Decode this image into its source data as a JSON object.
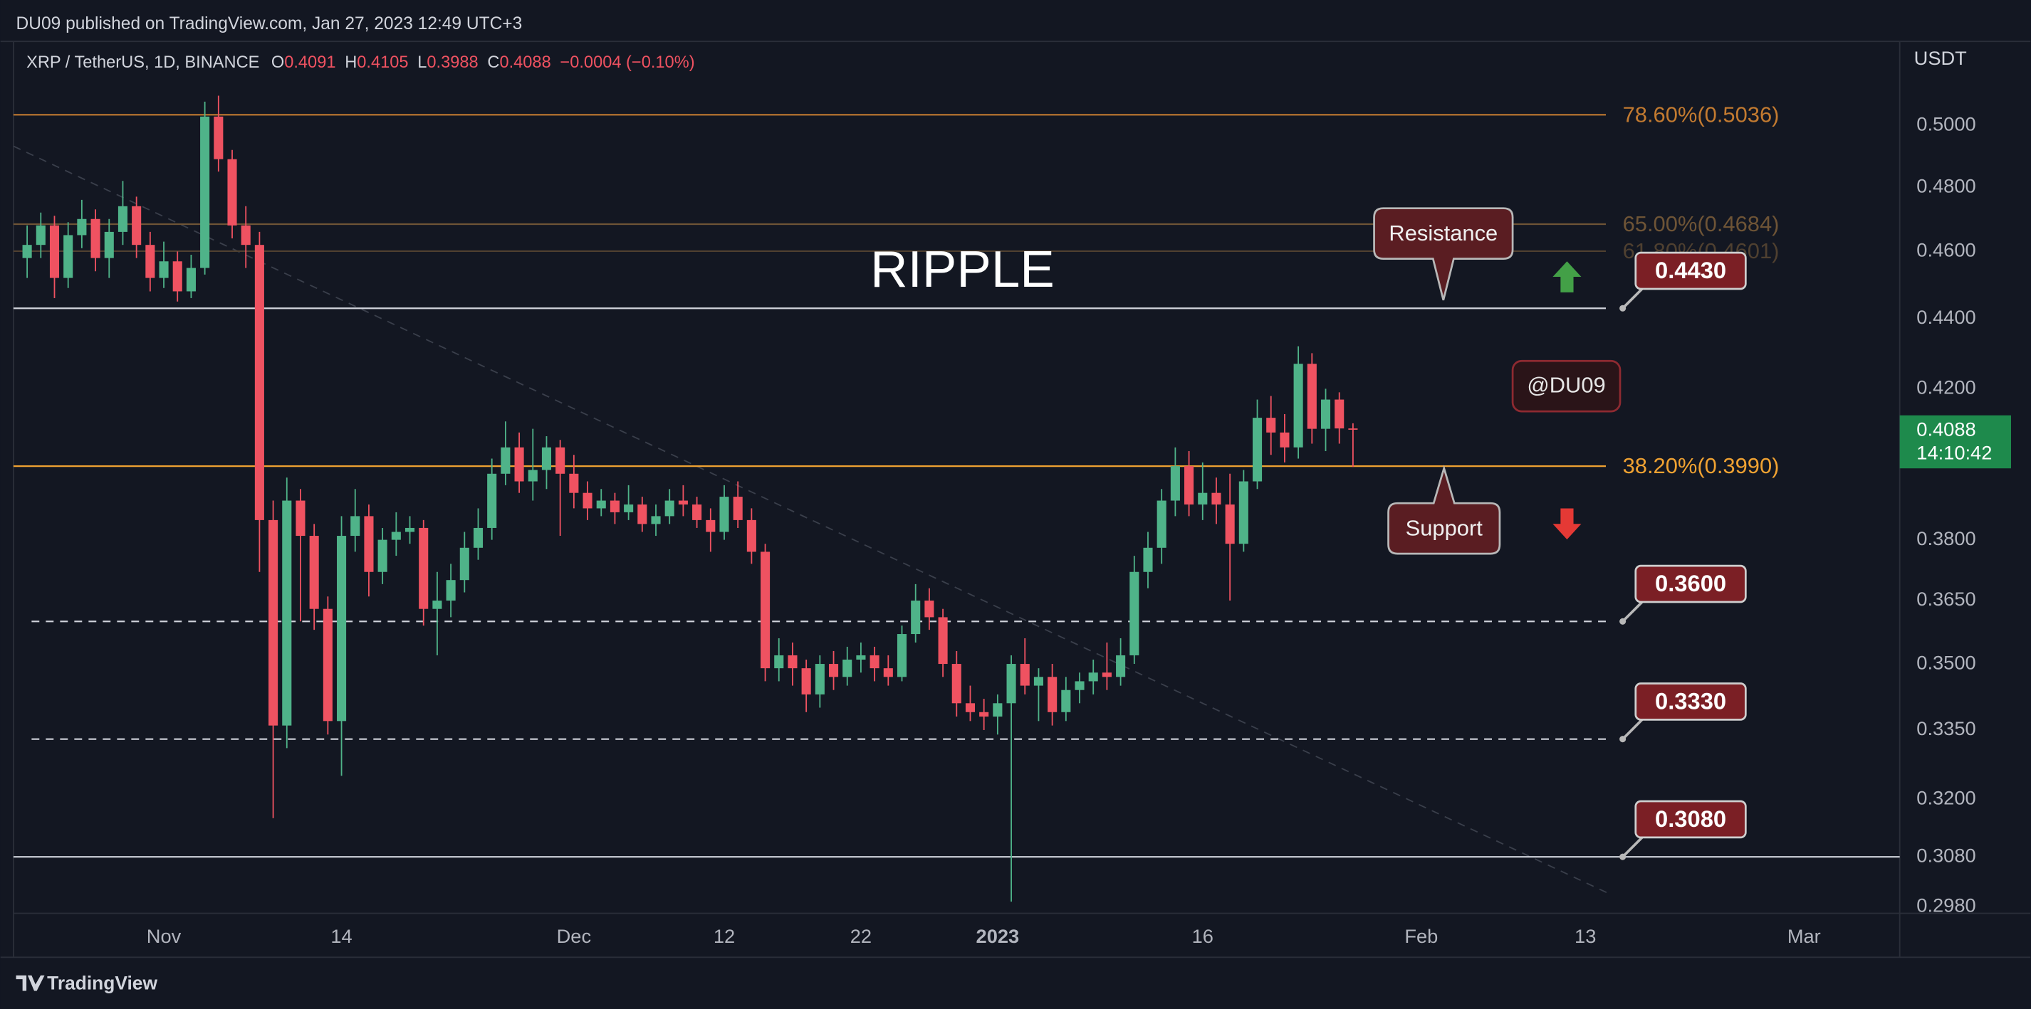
{
  "header": {
    "publisher": "DU09 published on TradingView.com, Jan 27, 2023 12:49 UTC+3",
    "brand": "TradingView"
  },
  "chart_data": {
    "type": "candlestick",
    "symbol": "XRP / TetherUS, 1D, BINANCE",
    "ohlc_labels": [
      "O",
      "H",
      "L",
      "C"
    ],
    "change": "−0.0004 (−0.10%)",
    "title": "RIPPLE",
    "watermark": "@DU09",
    "y_axis_label": "USDT",
    "countdown": "14:10:42",
    "up_color": "#4fb389",
    "down_color": "#ef5261",
    "x": [
      "2022-10-22",
      "2022-10-23",
      "2022-10-24",
      "2022-10-25",
      "2022-10-26",
      "2022-10-27",
      "2022-10-28",
      "2022-10-29",
      "2022-10-30",
      "2022-10-31",
      "2022-11-01",
      "2022-11-02",
      "2022-11-03",
      "2022-11-04",
      "2022-11-05",
      "2022-11-06",
      "2022-11-07",
      "2022-11-08",
      "2022-11-09",
      "2022-11-10",
      "2022-11-11",
      "2022-11-12",
      "2022-11-13",
      "2022-11-14",
      "2022-11-15",
      "2022-11-16",
      "2022-11-17",
      "2022-11-18",
      "2022-11-19",
      "2022-11-20",
      "2022-11-21",
      "2022-11-22",
      "2022-11-23",
      "2022-11-24",
      "2022-11-25",
      "2022-11-26",
      "2022-11-27",
      "2022-11-28",
      "2022-11-29",
      "2022-11-30",
      "2022-12-01",
      "2022-12-02",
      "2022-12-03",
      "2022-12-04",
      "2022-12-05",
      "2022-12-06",
      "2022-12-07",
      "2022-12-08",
      "2022-12-09",
      "2022-12-10",
      "2022-12-11",
      "2022-12-12",
      "2022-12-13",
      "2022-12-14",
      "2022-12-15",
      "2022-12-16",
      "2022-12-17",
      "2022-12-18",
      "2022-12-19",
      "2022-12-20",
      "2022-12-21",
      "2022-12-22",
      "2022-12-23",
      "2022-12-24",
      "2022-12-25",
      "2022-12-26",
      "2022-12-27",
      "2022-12-28",
      "2022-12-29",
      "2022-12-30",
      "2022-12-31",
      "2023-01-01",
      "2023-01-02",
      "2023-01-03",
      "2023-01-04",
      "2023-01-05",
      "2023-01-06",
      "2023-01-07",
      "2023-01-08",
      "2023-01-09",
      "2023-01-10",
      "2023-01-11",
      "2023-01-12",
      "2023-01-13",
      "2023-01-14",
      "2023-01-15",
      "2023-01-16",
      "2023-01-17",
      "2023-01-18",
      "2023-01-19",
      "2023-01-20",
      "2023-01-21",
      "2023-01-22",
      "2023-01-23",
      "2023-01-24",
      "2023-01-25",
      "2023-01-26",
      "2023-01-27"
    ],
    "open": [
      0.458,
      0.462,
      0.468,
      0.452,
      0.465,
      0.47,
      0.458,
      0.466,
      0.474,
      0.462,
      0.452,
      0.457,
      0.448,
      0.455,
      0.503,
      0.489,
      0.468,
      0.462,
      0.385,
      0.336,
      0.39,
      0.381,
      0.363,
      0.337,
      0.381,
      0.386,
      0.372,
      0.38,
      0.382,
      0.383,
      0.363,
      0.365,
      0.37,
      0.378,
      0.383,
      0.397,
      0.404,
      0.395,
      0.398,
      0.404,
      0.397,
      0.392,
      0.388,
      0.39,
      0.387,
      0.389,
      0.384,
      0.386,
      0.39,
      0.389,
      0.385,
      0.382,
      0.391,
      0.385,
      0.377,
      0.349,
      0.352,
      0.349,
      0.343,
      0.35,
      0.347,
      0.351,
      0.352,
      0.349,
      0.347,
      0.357,
      0.365,
      0.361,
      0.35,
      0.341,
      0.339,
      0.338,
      0.341,
      0.35,
      0.345,
      0.347,
      0.339,
      0.344,
      0.346,
      0.348,
      0.347,
      0.352,
      0.372,
      0.378,
      0.39,
      0.399,
      0.389,
      0.392,
      0.389,
      0.379,
      0.395,
      0.412,
      0.408,
      0.404,
      0.427,
      0.409,
      0.417,
      0.4091
    ],
    "high": [
      0.468,
      0.472,
      0.471,
      0.469,
      0.476,
      0.473,
      0.47,
      0.482,
      0.477,
      0.466,
      0.463,
      0.46,
      0.459,
      0.508,
      0.51,
      0.492,
      0.474,
      0.466,
      0.39,
      0.396,
      0.393,
      0.384,
      0.366,
      0.386,
      0.393,
      0.389,
      0.383,
      0.387,
      0.386,
      0.385,
      0.372,
      0.374,
      0.382,
      0.388,
      0.401,
      0.411,
      0.408,
      0.409,
      0.407,
      0.406,
      0.402,
      0.395,
      0.393,
      0.392,
      0.394,
      0.391,
      0.389,
      0.393,
      0.394,
      0.391,
      0.388,
      0.394,
      0.395,
      0.388,
      0.379,
      0.356,
      0.355,
      0.351,
      0.352,
      0.353,
      0.354,
      0.355,
      0.354,
      0.352,
      0.359,
      0.369,
      0.368,
      0.363,
      0.353,
      0.345,
      0.342,
      0.343,
      0.352,
      0.356,
      0.349,
      0.35,
      0.347,
      0.348,
      0.351,
      0.355,
      0.356,
      0.376,
      0.382,
      0.393,
      0.404,
      0.403,
      0.4,
      0.396,
      0.397,
      0.398,
      0.417,
      0.418,
      0.413,
      0.432,
      0.43,
      0.42,
      0.419,
      0.4105
    ],
    "low": [
      0.452,
      0.458,
      0.446,
      0.449,
      0.461,
      0.454,
      0.452,
      0.462,
      0.458,
      0.448,
      0.449,
      0.445,
      0.446,
      0.453,
      0.485,
      0.464,
      0.455,
      0.372,
      0.316,
      0.331,
      0.36,
      0.358,
      0.334,
      0.325,
      0.377,
      0.366,
      0.369,
      0.376,
      0.379,
      0.359,
      0.352,
      0.361,
      0.367,
      0.375,
      0.38,
      0.394,
      0.392,
      0.39,
      0.393,
      0.381,
      0.388,
      0.385,
      0.386,
      0.384,
      0.385,
      0.382,
      0.381,
      0.384,
      0.386,
      0.383,
      0.377,
      0.38,
      0.383,
      0.374,
      0.346,
      0.346,
      0.345,
      0.339,
      0.34,
      0.344,
      0.345,
      0.348,
      0.346,
      0.345,
      0.346,
      0.355,
      0.358,
      0.347,
      0.338,
      0.337,
      0.335,
      0.334,
      0.299,
      0.343,
      0.337,
      0.336,
      0.337,
      0.341,
      0.343,
      0.344,
      0.345,
      0.35,
      0.368,
      0.374,
      0.386,
      0.386,
      0.385,
      0.384,
      0.365,
      0.377,
      0.393,
      0.402,
      0.4,
      0.401,
      0.405,
      0.403,
      0.405,
      0.3988
    ],
    "close": [
      0.462,
      0.468,
      0.452,
      0.465,
      0.47,
      0.458,
      0.466,
      0.474,
      0.462,
      0.452,
      0.457,
      0.448,
      0.455,
      0.503,
      0.489,
      0.468,
      0.462,
      0.385,
      0.336,
      0.39,
      0.381,
      0.363,
      0.337,
      0.381,
      0.386,
      0.372,
      0.38,
      0.382,
      0.383,
      0.363,
      0.365,
      0.37,
      0.378,
      0.383,
      0.397,
      0.404,
      0.395,
      0.398,
      0.404,
      0.397,
      0.392,
      0.388,
      0.39,
      0.387,
      0.389,
      0.384,
      0.386,
      0.39,
      0.389,
      0.385,
      0.382,
      0.391,
      0.385,
      0.377,
      0.349,
      0.352,
      0.349,
      0.343,
      0.35,
      0.347,
      0.351,
      0.352,
      0.349,
      0.347,
      0.357,
      0.365,
      0.361,
      0.35,
      0.341,
      0.339,
      0.338,
      0.341,
      0.35,
      0.345,
      0.347,
      0.339,
      0.344,
      0.346,
      0.348,
      0.347,
      0.352,
      0.372,
      0.378,
      0.39,
      0.399,
      0.389,
      0.392,
      0.389,
      0.379,
      0.395,
      0.412,
      0.408,
      0.404,
      0.427,
      0.409,
      0.417,
      0.4091,
      0.4088
    ],
    "xlim": [
      "2022-10-21",
      "2023-03-08"
    ],
    "xticks": [
      {
        "value": "2022-11-01",
        "label": "Nov"
      },
      {
        "value": "2022-11-14",
        "label": "14"
      },
      {
        "value": "2022-12-01",
        "label": "Dec"
      },
      {
        "value": "2022-12-12",
        "label": "12"
      },
      {
        "value": "2022-12-22",
        "label": "22"
      },
      {
        "value": "2023-01-01",
        "label": "2023"
      },
      {
        "value": "2023-01-16",
        "label": "16"
      },
      {
        "value": "2023-02-01",
        "label": "Feb"
      },
      {
        "value": "2023-02-13",
        "label": "13"
      },
      {
        "value": "2023-03-01",
        "label": "Mar"
      }
    ],
    "ylim": [
      0.2967,
      0.5296
    ],
    "log_scale": true,
    "grid": false,
    "yticks": [
      {
        "value": 0.5,
        "label": "0.5000"
      },
      {
        "value": 0.48,
        "label": "0.4800"
      },
      {
        "value": 0.46,
        "label": "0.4600"
      },
      {
        "value": 0.44,
        "label": "0.4400"
      },
      {
        "value": 0.42,
        "label": "0.4200"
      },
      {
        "value": 0.38,
        "label": "0.3800"
      },
      {
        "value": 0.365,
        "label": "0.3650"
      },
      {
        "value": 0.35,
        "label": "0.3500"
      },
      {
        "value": 0.335,
        "label": "0.3350"
      },
      {
        "value": 0.32,
        "label": "0.3200"
      },
      {
        "value": 0.308,
        "label": "0.3080"
      },
      {
        "value": 0.298,
        "label": "0.2980"
      }
    ],
    "fib_levels": [
      {
        "label": "78.60%(0.5036)",
        "value": 0.5036,
        "color": "#c27a30"
      },
      {
        "label": "65.00%(0.4684)",
        "value": 0.4684,
        "color": "#6e5436"
      },
      {
        "label": "61.80%(0.4601)",
        "value": 0.4601,
        "color": "#4f4030"
      },
      {
        "label": "38.20%(0.3990)",
        "value": 0.399,
        "color": "#f0a232"
      }
    ],
    "levels": [
      {
        "value": 0.443,
        "label": "0.4430",
        "style": "solid"
      },
      {
        "value": 0.36,
        "label": "0.3600",
        "style": "dashed"
      },
      {
        "value": 0.333,
        "label": "0.3330",
        "style": "dashed"
      },
      {
        "value": 0.308,
        "label": "0.3080",
        "style": "solid"
      }
    ],
    "annotations": {
      "resistance": "Resistance",
      "support": "Support"
    }
  }
}
